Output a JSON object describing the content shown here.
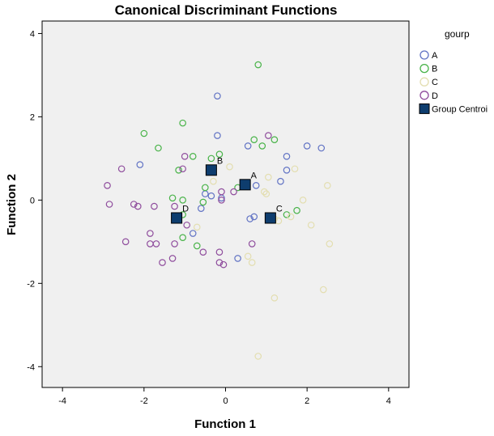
{
  "chart_data": {
    "type": "scatter",
    "title": "Canonical Discriminant Functions",
    "xlabel": "Function 1",
    "ylabel": "Function 2",
    "xlim": [
      -4.5,
      4.5
    ],
    "ylim": [
      -4.5,
      4.3
    ],
    "xticks": [
      -4,
      -2,
      0,
      2,
      4
    ],
    "yticks": [
      -4,
      -2,
      0,
      2,
      4
    ],
    "xtick_labels": [
      "-4",
      "-2",
      "0",
      "2",
      "4"
    ],
    "ytick_labels": [
      "-4",
      "-2",
      "0",
      "2",
      "4"
    ],
    "grid": false,
    "legend_position": "right",
    "legend_title": "gourp",
    "plot_background": "#f0f0f0",
    "series": [
      {
        "name": "A",
        "color": "#6173c4",
        "marker": "open-circle",
        "points": [
          [
            -0.2,
            2.5
          ],
          [
            -0.2,
            1.55
          ],
          [
            1.5,
            1.05
          ],
          [
            2.0,
            1.3
          ],
          [
            2.35,
            1.25
          ],
          [
            1.5,
            0.72
          ],
          [
            -2.1,
            0.85
          ],
          [
            0.75,
            0.35
          ],
          [
            1.35,
            0.45
          ],
          [
            -0.5,
            0.15
          ],
          [
            -0.35,
            0.1
          ],
          [
            -0.1,
            0.05
          ],
          [
            0.6,
            -0.45
          ],
          [
            0.7,
            -0.4
          ],
          [
            -0.6,
            -0.2
          ],
          [
            -0.8,
            -0.8
          ],
          [
            0.3,
            -1.4
          ],
          [
            0.55,
            1.3
          ]
        ]
      },
      {
        "name": "B",
        "color": "#48b348",
        "marker": "open-circle",
        "points": [
          [
            0.8,
            3.25
          ],
          [
            -1.05,
            1.85
          ],
          [
            -2.0,
            1.6
          ],
          [
            -1.65,
            1.25
          ],
          [
            0.9,
            1.3
          ],
          [
            1.2,
            1.45
          ],
          [
            0.7,
            1.45
          ],
          [
            -0.8,
            1.05
          ],
          [
            -0.35,
            1.0
          ],
          [
            -0.15,
            1.1
          ],
          [
            -1.15,
            0.72
          ],
          [
            -0.3,
            0.75
          ],
          [
            0.3,
            0.3
          ],
          [
            -0.5,
            0.3
          ],
          [
            -1.3,
            0.05
          ],
          [
            -1.05,
            0.0
          ],
          [
            -0.55,
            -0.05
          ],
          [
            1.75,
            -0.25
          ],
          [
            -1.05,
            -0.35
          ],
          [
            -1.05,
            -0.9
          ],
          [
            -0.7,
            -1.1
          ],
          [
            1.5,
            -0.35
          ]
        ]
      },
      {
        "name": "C",
        "color": "#e3deb0",
        "marker": "open-circle",
        "points": [
          [
            0.1,
            0.8
          ],
          [
            1.7,
            0.75
          ],
          [
            -0.3,
            0.45
          ],
          [
            0.95,
            0.2
          ],
          [
            1.05,
            0.55
          ],
          [
            2.5,
            0.35
          ],
          [
            1.9,
            0.0
          ],
          [
            1.0,
            0.15
          ],
          [
            1.6,
            -0.4
          ],
          [
            1.3,
            -0.5
          ],
          [
            2.1,
            -0.6
          ],
          [
            -0.7,
            -0.65
          ],
          [
            2.55,
            -1.05
          ],
          [
            0.55,
            -1.35
          ],
          [
            0.65,
            -1.5
          ],
          [
            1.2,
            -2.35
          ],
          [
            2.4,
            -2.15
          ],
          [
            0.8,
            -3.75
          ],
          [
            1.2,
            -0.45
          ]
        ]
      },
      {
        "name": "D",
        "color": "#8f4d9d",
        "marker": "open-circle",
        "points": [
          [
            1.05,
            1.55
          ],
          [
            -2.55,
            0.75
          ],
          [
            -1.05,
            0.75
          ],
          [
            -1.0,
            1.05
          ],
          [
            -2.9,
            0.35
          ],
          [
            -0.1,
            0.2
          ],
          [
            -0.1,
            0.0
          ],
          [
            -2.85,
            -0.1
          ],
          [
            -2.25,
            -0.1
          ],
          [
            -2.15,
            -0.15
          ],
          [
            -1.75,
            -0.15
          ],
          [
            -1.25,
            -0.15
          ],
          [
            -0.95,
            -0.6
          ],
          [
            -2.45,
            -1.0
          ],
          [
            -1.85,
            -0.8
          ],
          [
            -1.85,
            -1.05
          ],
          [
            -1.7,
            -1.05
          ],
          [
            -1.25,
            -1.05
          ],
          [
            -1.3,
            -1.4
          ],
          [
            -1.55,
            -1.5
          ],
          [
            -0.55,
            -1.25
          ],
          [
            -0.15,
            -1.25
          ],
          [
            -0.15,
            -1.5
          ],
          [
            -0.05,
            -1.55
          ],
          [
            0.65,
            -1.05
          ],
          [
            0.2,
            0.2
          ]
        ]
      }
    ],
    "centroids": {
      "name": "Group Centroi",
      "color": "#0e3d6e",
      "marker": "filled-square",
      "points": [
        {
          "label": "A",
          "x": 0.48,
          "y": 0.37
        },
        {
          "label": "B",
          "x": -0.35,
          "y": 0.72
        },
        {
          "label": "C",
          "x": 1.1,
          "y": -0.43
        },
        {
          "label": "D",
          "x": -1.2,
          "y": -0.43
        }
      ]
    }
  }
}
